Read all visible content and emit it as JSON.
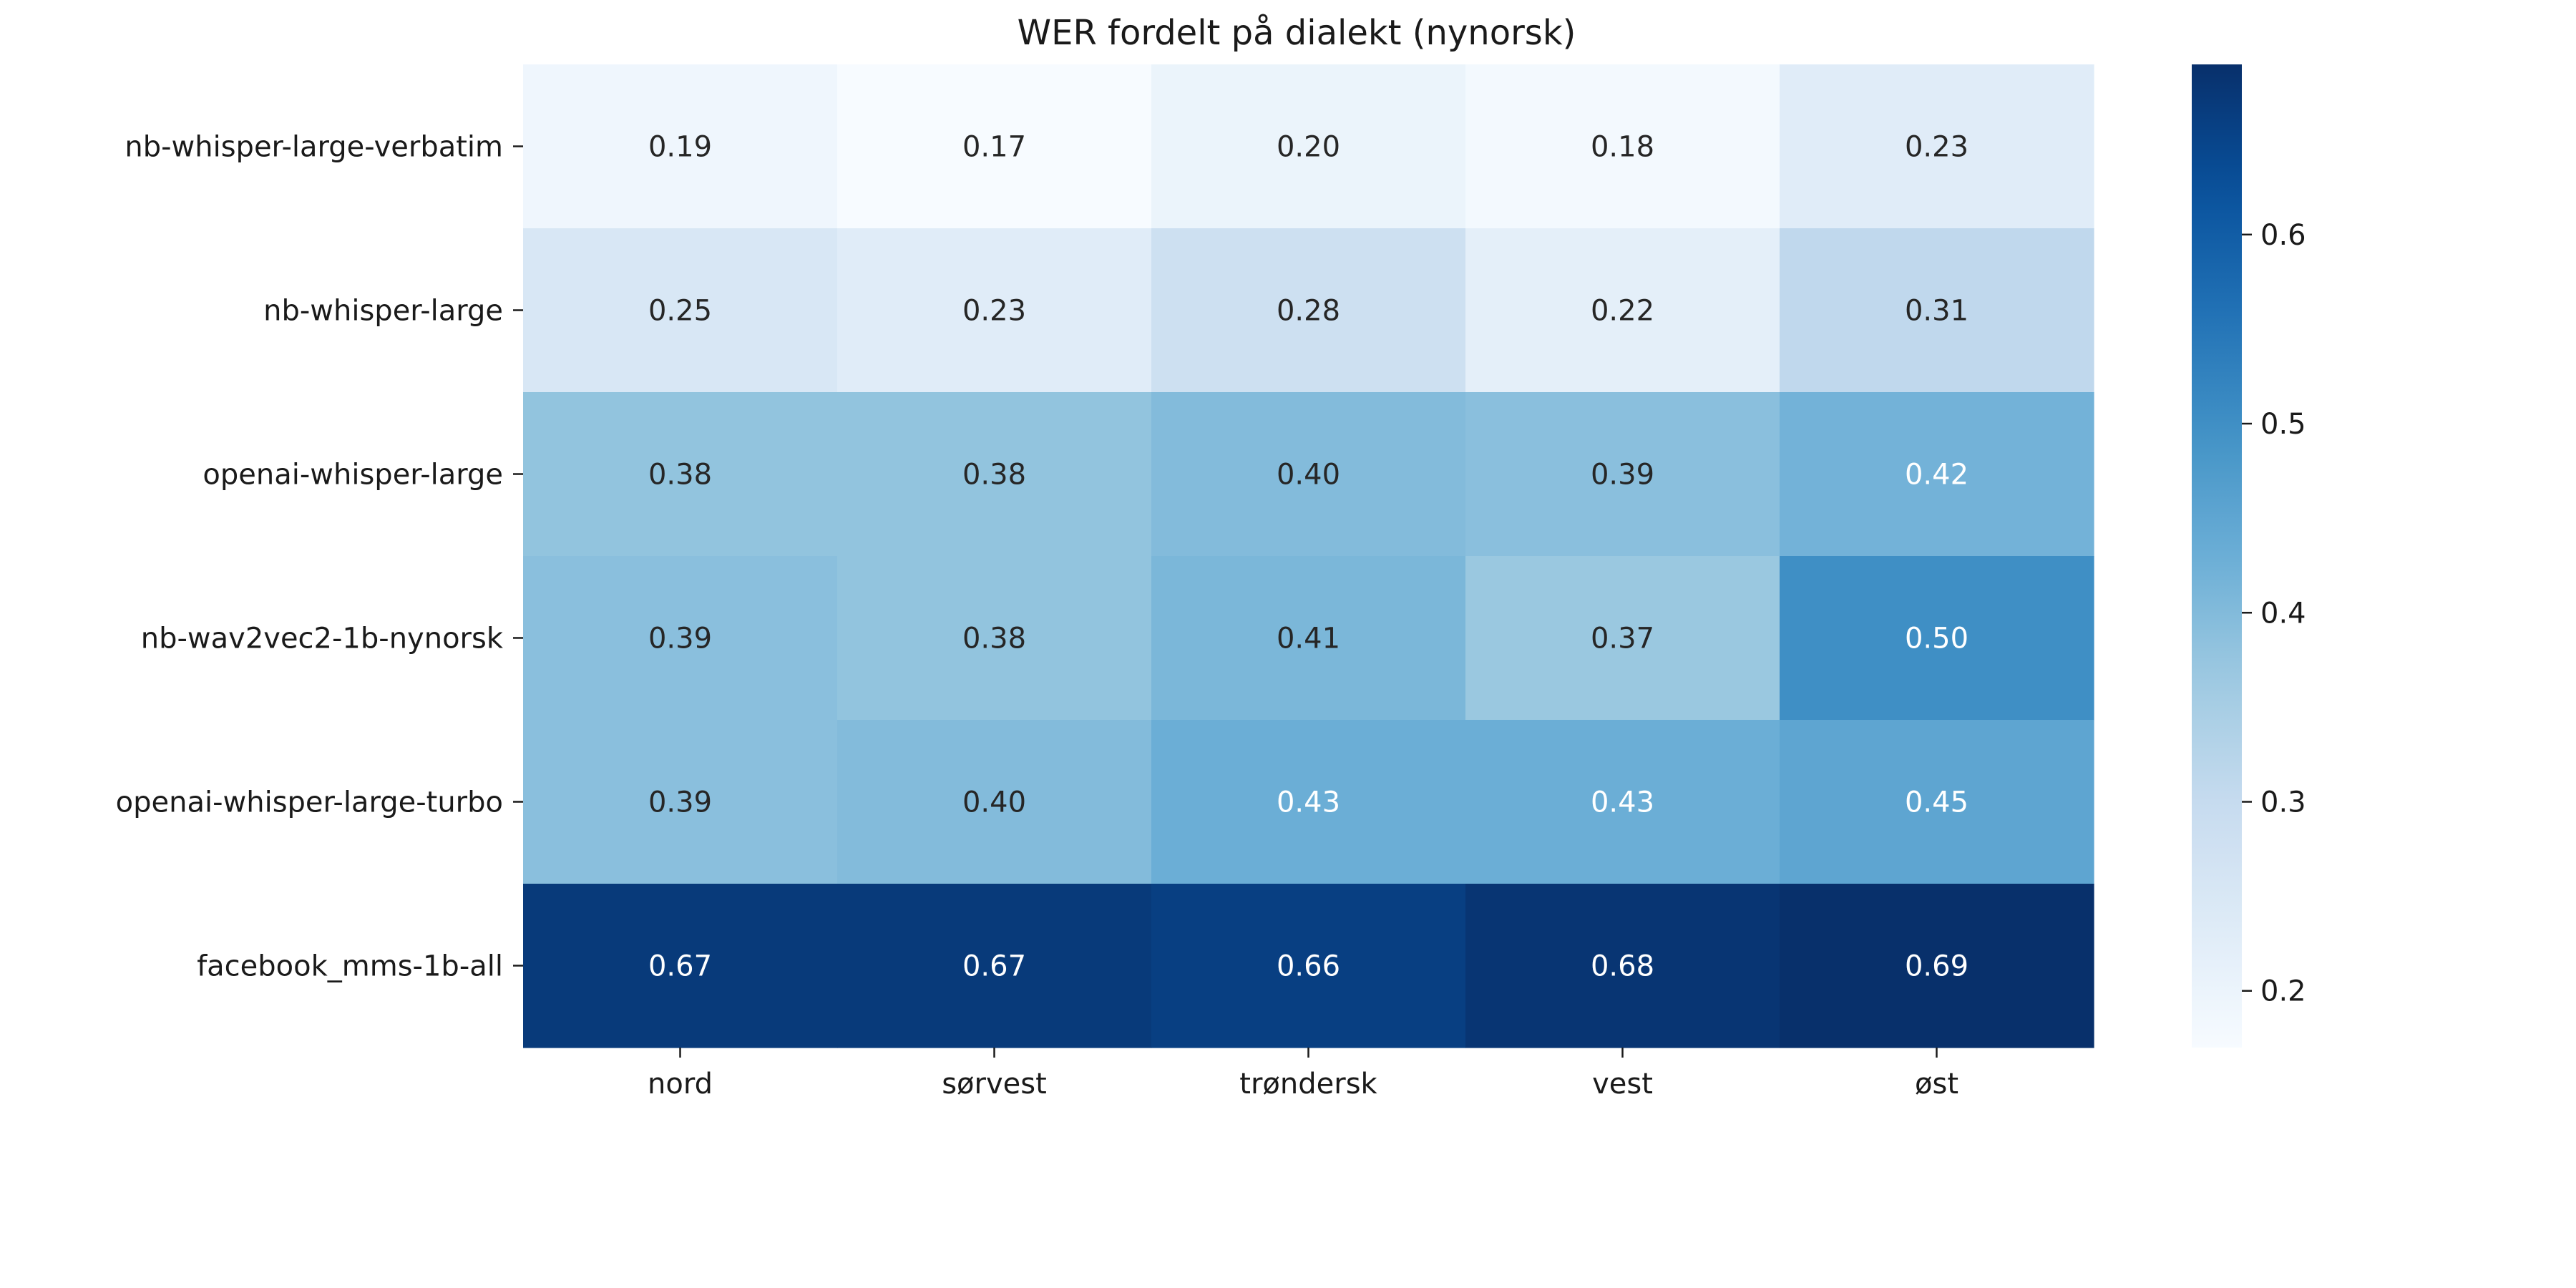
{
  "chart_data": {
    "type": "heatmap",
    "title": "WER fordelt på dialekt (nynorsk)",
    "xlabel": "",
    "ylabel": "",
    "columns": [
      "nord",
      "sørvest",
      "trøndersk",
      "vest",
      "øst"
    ],
    "rows": [
      "nb-whisper-large-verbatim",
      "nb-whisper-large",
      "openai-whisper-large",
      "nb-wav2vec2-1b-nynorsk",
      "openai-whisper-large-turbo",
      "facebook_mms-1b-all"
    ],
    "values": [
      [
        0.19,
        0.17,
        0.2,
        0.18,
        0.23
      ],
      [
        0.25,
        0.23,
        0.28,
        0.22,
        0.31
      ],
      [
        0.38,
        0.38,
        0.4,
        0.39,
        0.42
      ],
      [
        0.39,
        0.38,
        0.41,
        0.37,
        0.5
      ],
      [
        0.39,
        0.4,
        0.43,
        0.43,
        0.45
      ],
      [
        0.67,
        0.67,
        0.66,
        0.68,
        0.69
      ]
    ],
    "value_format": "0.00",
    "colormap": "Blues",
    "colorbar": {
      "range": [
        0.17,
        0.69
      ],
      "ticks": [
        0.2,
        0.3,
        0.4,
        0.5,
        0.6
      ],
      "tick_labels": [
        "0.2",
        "0.3",
        "0.4",
        "0.5",
        "0.6"
      ]
    },
    "text_color_dark": "#262626",
    "text_color_light": "#ffffff"
  }
}
